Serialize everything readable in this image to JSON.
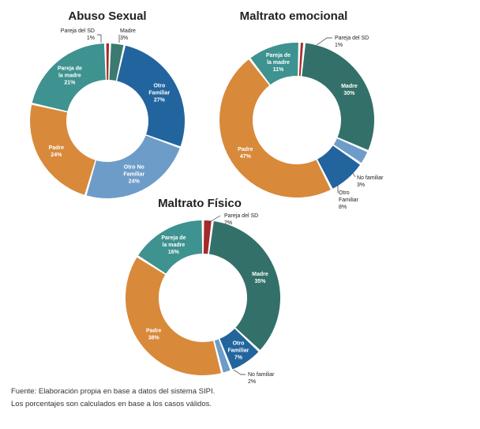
{
  "chart_data": [
    {
      "type": "pie",
      "title": "Abuso Sexual",
      "series": [
        {
          "values": [
            {
              "label": "Madre",
              "value": 3,
              "color": "#3a7a70"
            },
            {
              "label": "Otro Familiar",
              "value": 27,
              "color": "#22649e"
            },
            {
              "label": "Otro No Familiar",
              "value": 24,
              "color": "#6e9cc8"
            },
            {
              "label": "Padre",
              "value": 24,
              "color": "#d8893a"
            },
            {
              "label": "Pareja de la madre",
              "value": 21,
              "color": "#3e928f"
            },
            {
              "label": "Pareja del SD",
              "value": 1,
              "color": "#a52a2a"
            }
          ]
        }
      ],
      "labels": [
        {
          "lines": [
            "Madre",
            "3%"
          ]
        },
        {
          "lines": [
            "Otro",
            "Familiar",
            "27%"
          ]
        },
        {
          "lines": [
            "Otro No",
            "Familiar",
            "24%"
          ]
        },
        {
          "lines": [
            "Padre",
            "24%"
          ]
        },
        {
          "lines": [
            "Pareja de",
            "la madre",
            "21%"
          ]
        },
        {
          "lines": [
            "Pareja del SD",
            "1%"
          ]
        }
      ]
    },
    {
      "type": "pie",
      "title": "Maltrato emocional",
      "series": [
        {
          "values": [
            {
              "label": "Pareja del SD",
              "value": 1,
              "color": "#a52a2a"
            },
            {
              "label": "Madre",
              "value": 30,
              "color": "#33706a"
            },
            {
              "label": "No familiar",
              "value": 3,
              "color": "#6e9cc8"
            },
            {
              "label": "Otro Familiar",
              "value": 8,
              "color": "#22649e"
            },
            {
              "label": "Padre",
              "value": 47,
              "color": "#d8893a"
            },
            {
              "label": "Pareja de la madre",
              "value": 11,
              "color": "#3e928f"
            }
          ]
        }
      ],
      "labels": [
        {
          "lines": [
            "Pareja del SD",
            "1%"
          ]
        },
        {
          "lines": [
            "Madre",
            "30%"
          ]
        },
        {
          "lines": [
            "No familiar",
            "3%"
          ]
        },
        {
          "lines": [
            "Otro",
            "Familiar",
            "8%"
          ]
        },
        {
          "lines": [
            "Padre",
            "47%"
          ]
        },
        {
          "lines": [
            "Pareja de",
            "la madre",
            "11%"
          ]
        }
      ]
    },
    {
      "type": "pie",
      "title": "Maltrato Físico",
      "series": [
        {
          "values": [
            {
              "label": "Pareja del SD",
              "value": 2,
              "color": "#a52a2a"
            },
            {
              "label": "Madre",
              "value": 35,
              "color": "#33706a"
            },
            {
              "label": "Otro Familiar",
              "value": 7,
              "color": "#22649e"
            },
            {
              "label": "No familiar",
              "value": 2,
              "color": "#6e9cc8"
            },
            {
              "label": "Padre",
              "value": 38,
              "color": "#d8893a"
            },
            {
              "label": "Pareja de la madre",
              "value": 16,
              "color": "#3e928f"
            }
          ]
        }
      ],
      "labels": [
        {
          "lines": [
            "Pareja del SD",
            "2%"
          ]
        },
        {
          "lines": [
            "Madre",
            "35%"
          ]
        },
        {
          "lines": [
            "Otro",
            "Familiar",
            "7%"
          ]
        },
        {
          "lines": [
            "No familiar",
            "2%"
          ]
        },
        {
          "lines": [
            "Padre",
            "38%"
          ]
        },
        {
          "lines": [
            "Pareja de",
            "la madre",
            "16%"
          ]
        }
      ]
    }
  ],
  "source": {
    "line1": "Fuente: Elaboración propia en base a datos del sistema SIPI.",
    "line2": "Los porcentajes son calculados en base a los casos válidos."
  }
}
